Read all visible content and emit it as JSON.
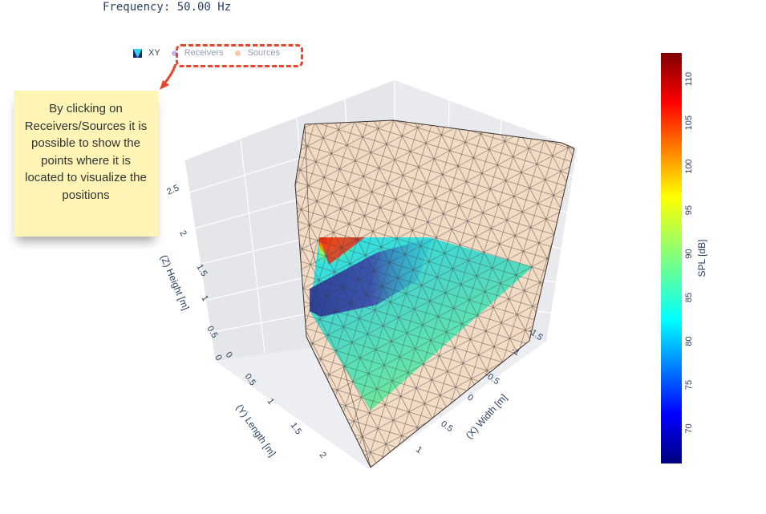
{
  "header": {
    "frequency_label": "Frequency: 50.00 Hz"
  },
  "legend": {
    "items": [
      {
        "label": "XY",
        "color": "#2a3f5f"
      },
      {
        "label": "Receivers",
        "color": "#c4b5f0"
      },
      {
        "label": "Sources",
        "color": "#f6c9a5"
      }
    ]
  },
  "annotation": {
    "text": "By clicking on Receivers/Sources it is possible to show the points where it is located to visualize the positions"
  },
  "chart_data": {
    "type": "heatmap",
    "title": "Frequency: 50.00 Hz",
    "subtype": "3d-mesh-slice",
    "colorscale": "Jet",
    "colorbar": {
      "title": "SPL [dB]",
      "range": [
        66,
        113
      ],
      "ticks": [
        70,
        75,
        80,
        85,
        90,
        95,
        100,
        105,
        110
      ]
    },
    "axes": {
      "x": {
        "title": "(X) Width [m]",
        "ticks": [
          "-1.5",
          "-1",
          "-0.5",
          "0",
          "0.5",
          "1"
        ]
      },
      "y": {
        "title": "(Y) Length [m]",
        "ticks": [
          "0",
          "0.5",
          "1",
          "1.5",
          "2"
        ]
      },
      "z": {
        "title": "(Z) Height [m]",
        "ticks": [
          "0",
          "0.5",
          "1",
          "1.5",
          "2",
          "2.5"
        ]
      }
    },
    "series": [
      {
        "name": "XY",
        "kind": "SPL slice surface"
      },
      {
        "name": "Receivers",
        "kind": "points",
        "visible": false
      },
      {
        "name": "Sources",
        "kind": "points",
        "visible": false
      }
    ],
    "slice_spl_samples": [
      {
        "region": "corner-top-left",
        "spl": 111
      },
      {
        "region": "upper-left",
        "spl": 97
      },
      {
        "region": "center-dark-band",
        "spl": 68
      },
      {
        "region": "lower-right",
        "spl": 87
      },
      {
        "region": "bottom",
        "spl": 84
      }
    ]
  }
}
